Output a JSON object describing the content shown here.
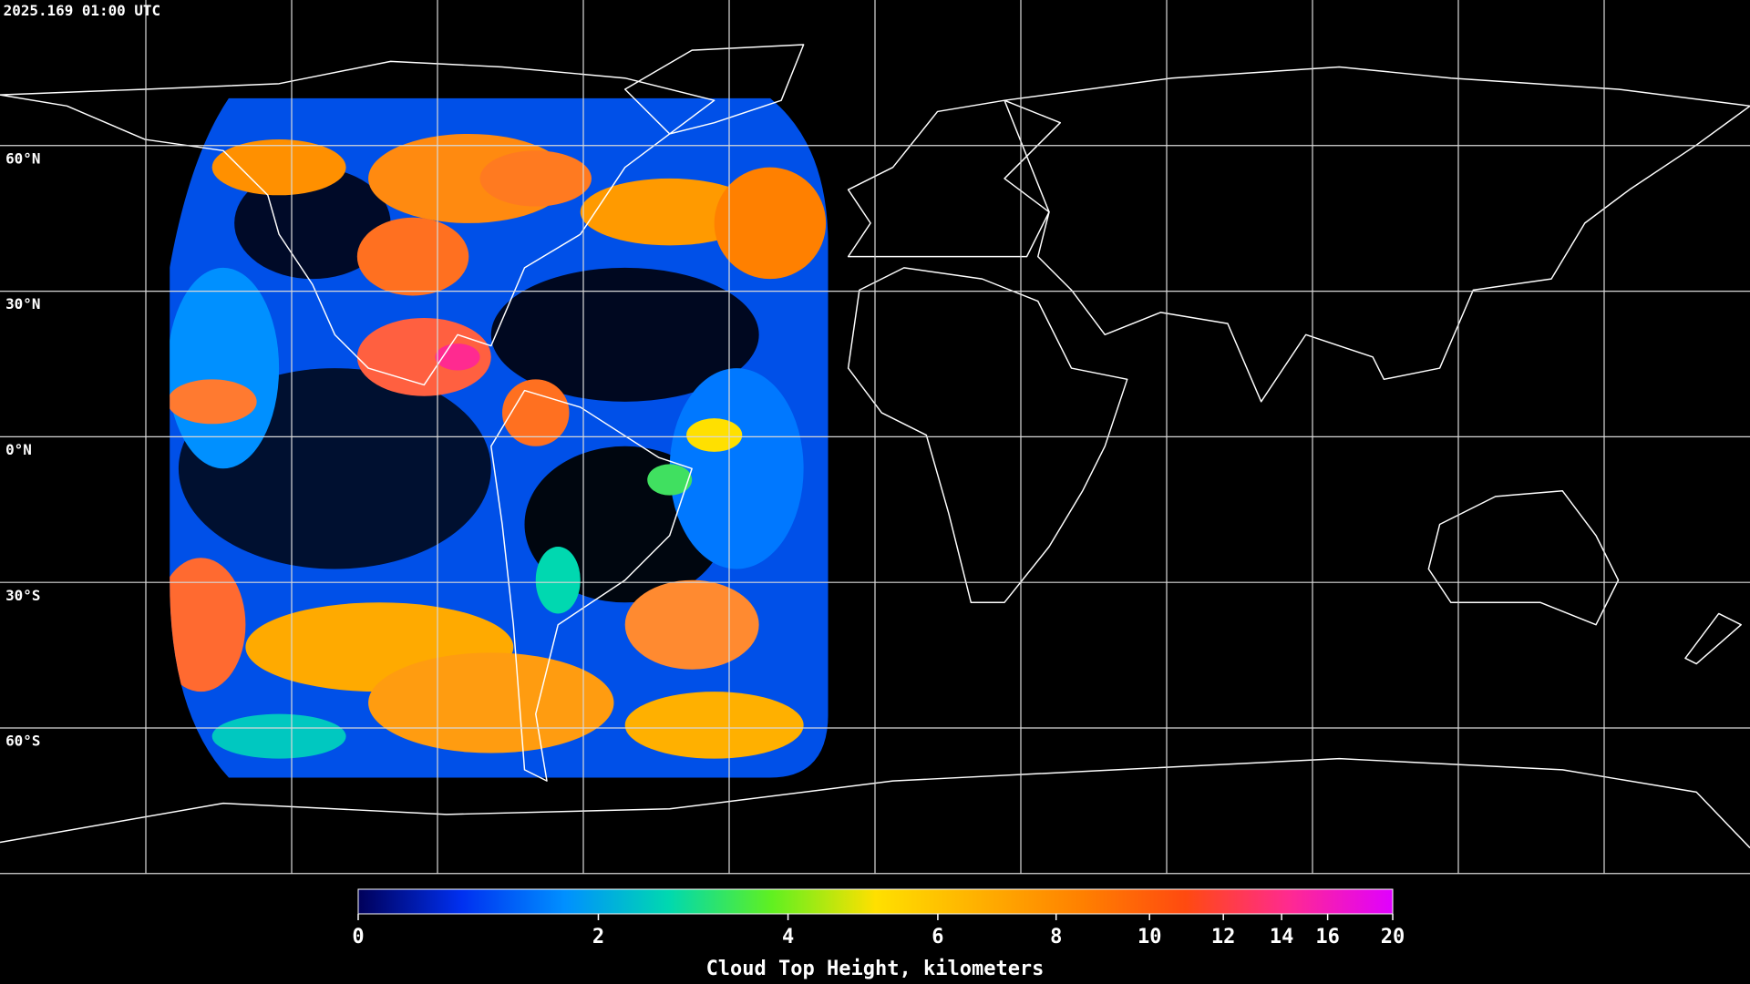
{
  "timestamp": "2025.169 01:00 UTC",
  "map": {
    "xlim": [
      -180,
      180
    ],
    "ylim": [
      -90,
      90
    ],
    "lon_gridlines": [
      -150,
      -120,
      -90,
      -60,
      -30,
      0,
      30,
      60,
      90,
      120,
      150
    ],
    "lat_gridlines": [
      {
        "value": 60,
        "label": "60°N"
      },
      {
        "value": 30,
        "label": "30°N"
      },
      {
        "value": 0,
        "label": "0°N"
      },
      {
        "value": -30,
        "label": "30°S"
      },
      {
        "value": -60,
        "label": "60°S"
      }
    ]
  },
  "colorbar": {
    "label": "Cloud Top Height, kilometers",
    "lim": [
      0,
      20
    ],
    "ticks": [
      0,
      2,
      4,
      6,
      8,
      10,
      12,
      14,
      16,
      20
    ],
    "colors": [
      "#00005a",
      "#0030f0",
      "#0090ff",
      "#00d8b0",
      "#60f020",
      "#ffe000",
      "#ffb000",
      "#ff8000",
      "#ff4a10",
      "#ff2a90",
      "#e000ff"
    ]
  }
}
